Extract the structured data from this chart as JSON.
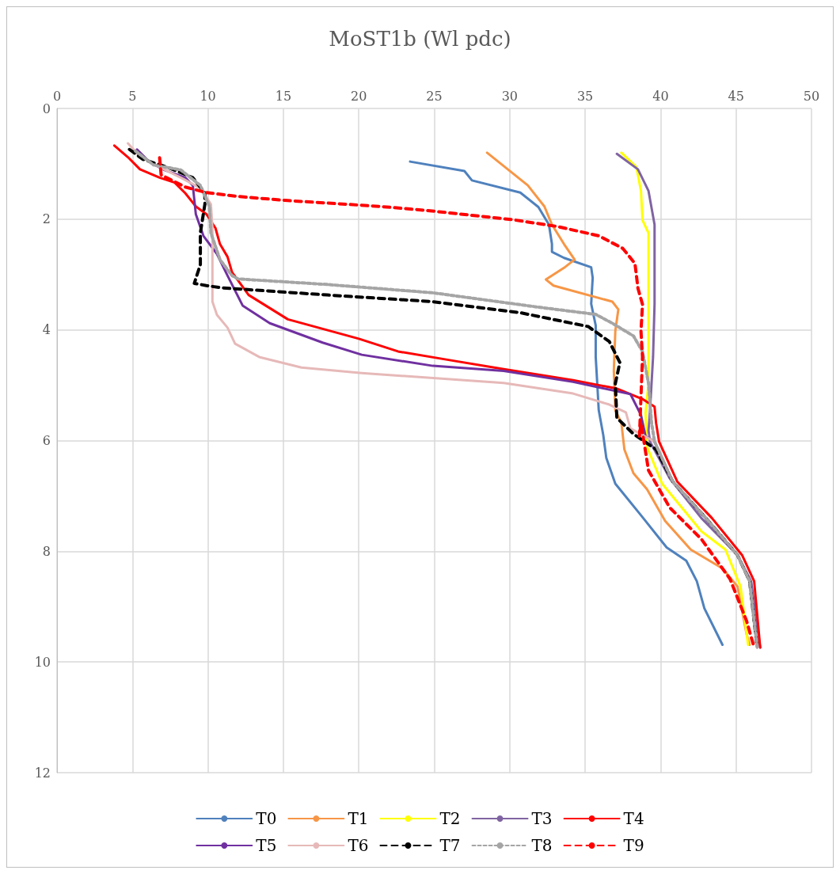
{
  "chart_data": {
    "type": "line",
    "title": "MoST1b (Wl pdc)",
    "xlim": [
      0,
      50
    ],
    "xticks": [
      0,
      5,
      10,
      15,
      20,
      25,
      30,
      35,
      40,
      45,
      50
    ],
    "ylim": [
      12,
      0
    ],
    "yticks": [
      0,
      2,
      4,
      6,
      8,
      10,
      12
    ],
    "grid": true,
    "legend": "bottom",
    "marker": "none",
    "line_style": "solid",
    "series": [
      {
        "name": "T0",
        "color": "#4f81bd",
        "x": [
          23.4,
          27.0,
          27.5,
          30.7,
          31.9,
          32.6,
          32.8,
          32.8,
          33.6,
          35.4,
          35.5,
          35.4,
          35.7,
          35.7,
          35.8,
          35.9,
          36.2,
          36.4,
          37.0,
          38.7,
          40.4,
          41.7,
          42.4,
          42.9,
          44.1
        ],
        "values": [
          0.96,
          1.13,
          1.3,
          1.52,
          1.78,
          2.1,
          2.45,
          2.59,
          2.7,
          2.87,
          3.06,
          3.53,
          3.92,
          4.49,
          4.96,
          5.45,
          5.9,
          6.31,
          6.78,
          7.35,
          7.93,
          8.17,
          8.54,
          9.03,
          9.69
        ]
      },
      {
        "name": "T1",
        "color": "#f79646",
        "x": [
          28.5,
          31.2,
          32.3,
          32.8,
          33.6,
          34.3,
          33.6,
          32.4,
          32.9,
          36.8,
          37.2,
          37.0,
          36.9,
          37.0,
          37.4,
          37.6,
          38.2,
          39.1,
          40.3,
          42.0,
          44.1,
          45.1,
          45.7,
          45.9
        ],
        "values": [
          0.8,
          1.39,
          1.77,
          2.1,
          2.45,
          2.73,
          2.88,
          3.09,
          3.2,
          3.49,
          3.63,
          4.02,
          4.73,
          5.45,
          5.68,
          6.16,
          6.59,
          6.88,
          7.45,
          7.97,
          8.31,
          8.64,
          9.5,
          9.69
        ]
      },
      {
        "name": "T2",
        "color": "#ffff00",
        "x": [
          37.4,
          38.4,
          38.7,
          38.8,
          39.2,
          39.2,
          39.2,
          39.0,
          39.1,
          40.1,
          42.7,
          44.3,
          45.3,
          45.8
        ],
        "values": [
          0.8,
          1.06,
          1.49,
          2.02,
          2.25,
          3.53,
          4.97,
          5.5,
          6.11,
          6.78,
          7.64,
          7.97,
          8.64,
          9.69
        ]
      },
      {
        "name": "T3",
        "color": "#8064a2",
        "x": [
          37.1,
          38.5,
          39.2,
          39.6,
          39.6,
          39.5,
          39.3,
          39.2,
          39.3,
          40.6,
          42.7,
          45.1,
          46.0,
          46.6
        ],
        "values": [
          0.82,
          1.1,
          1.49,
          2.1,
          3.53,
          4.49,
          5.45,
          5.82,
          6.02,
          6.68,
          7.4,
          8.07,
          8.54,
          9.74
        ]
      },
      {
        "name": "T4",
        "color": "#ff0000",
        "x": [
          3.8,
          4.7,
          5.5,
          6.8,
          7.8,
          8.5,
          9.2,
          9.9,
          10.5,
          10.8,
          11.3,
          11.6,
          12.7,
          15.3,
          20.0,
          22.6,
          26.1,
          29.6,
          34.2,
          37.1,
          38.8,
          39.6,
          39.7,
          39.9,
          41.1,
          43.4,
          45.4,
          46.2,
          46.6
        ],
        "values": [
          0.67,
          0.88,
          1.1,
          1.25,
          1.34,
          1.53,
          1.77,
          1.91,
          2.16,
          2.45,
          2.68,
          2.96,
          3.37,
          3.81,
          4.16,
          4.39,
          4.55,
          4.71,
          4.91,
          5.06,
          5.25,
          5.39,
          5.68,
          6.02,
          6.74,
          7.4,
          8.07,
          8.54,
          9.74
        ]
      },
      {
        "name": "T5",
        "color": "#7030a0",
        "x": [
          5.3,
          6.1,
          7.1,
          8.5,
          9.0,
          9.2,
          9.7,
          10.6,
          11.3,
          12.3,
          14.1,
          17.6,
          20.2,
          24.9,
          29.6,
          34.2,
          38.0,
          38.7,
          39.0,
          39.6,
          40.8,
          43.0,
          45.1,
          45.9,
          46.4
        ],
        "values": [
          0.74,
          0.96,
          1.11,
          1.25,
          1.39,
          1.91,
          2.3,
          2.63,
          3.02,
          3.56,
          3.88,
          4.23,
          4.45,
          4.65,
          4.74,
          4.94,
          5.16,
          5.54,
          5.92,
          6.02,
          6.74,
          7.4,
          8.07,
          8.54,
          9.74
        ]
      },
      {
        "name": "T6",
        "color": "#e6b9b8",
        "x": [
          4.7,
          5.5,
          6.8,
          8.2,
          9.5,
          10.2,
          10.3,
          10.3,
          10.6,
          11.3,
          11.8,
          13.4,
          16.2,
          20.2,
          29.6,
          34.2,
          36.6,
          37.7,
          38.0,
          39.6,
          40.8,
          43.0,
          45.1,
          45.9,
          46.4
        ],
        "values": [
          0.63,
          0.87,
          1.06,
          1.25,
          1.44,
          1.73,
          2.16,
          3.49,
          3.73,
          3.96,
          4.25,
          4.49,
          4.68,
          4.78,
          4.96,
          5.15,
          5.35,
          5.49,
          5.78,
          6.02,
          6.74,
          7.4,
          8.07,
          8.54,
          9.74
        ]
      },
      {
        "name": "T7",
        "color": "#000000",
        "line_style": "dashed",
        "x": [
          4.8,
          5.7,
          7.3,
          9.0,
          9.8,
          9.8,
          9.5,
          9.5,
          9.1,
          9.9,
          10.9,
          17.9,
          24.9,
          30.7,
          35.2,
          36.6,
          37.3,
          37.0,
          37.1,
          38.2,
          39.7,
          40.8,
          43.0,
          45.1,
          45.9,
          46.4
        ],
        "values": [
          0.74,
          0.92,
          1.06,
          1.25,
          1.53,
          1.73,
          2.25,
          2.82,
          3.16,
          3.2,
          3.24,
          3.37,
          3.49,
          3.69,
          3.94,
          4.21,
          4.59,
          4.97,
          5.59,
          5.88,
          6.16,
          6.74,
          7.4,
          8.07,
          8.54,
          9.74
        ]
      },
      {
        "name": "T8",
        "color": "#a5a5a5",
        "line_style": "dotted",
        "x": [
          5.2,
          6.4,
          8.2,
          9.5,
          10.1,
          10.2,
          10.8,
          11.6,
          12.0,
          17.9,
          24.9,
          31.9,
          35.7,
          36.8,
          38.2,
          38.8,
          39.2,
          39.4,
          39.6,
          40.8,
          43.0,
          45.1,
          45.9,
          46.4
        ],
        "values": [
          0.77,
          1.02,
          1.11,
          1.39,
          1.77,
          2.25,
          2.73,
          3.02,
          3.08,
          3.18,
          3.33,
          3.59,
          3.72,
          3.88,
          4.11,
          4.39,
          4.97,
          5.68,
          6.02,
          6.74,
          7.4,
          8.07,
          8.54,
          9.74
        ]
      },
      {
        "name": "T9",
        "color": "#ff0000",
        "line_style": "dashed",
        "x": [
          6.8,
          6.9,
          8.5,
          9.9,
          12.0,
          15.1,
          21.4,
          24.4,
          30.2,
          33.1,
          35.9,
          37.5,
          38.3,
          38.5,
          38.8,
          38.7,
          38.8,
          38.7,
          38.6,
          38.7,
          39.2,
          40.6,
          42.7,
          44.6,
          45.7,
          46.2
        ],
        "values": [
          0.89,
          1.2,
          1.42,
          1.52,
          1.59,
          1.66,
          1.77,
          1.84,
          2.01,
          2.13,
          2.3,
          2.53,
          2.8,
          3.25,
          3.54,
          4.02,
          4.49,
          5.21,
          5.92,
          5.68,
          6.54,
          7.21,
          7.78,
          8.5,
          9.26,
          9.74
        ]
      }
    ]
  }
}
